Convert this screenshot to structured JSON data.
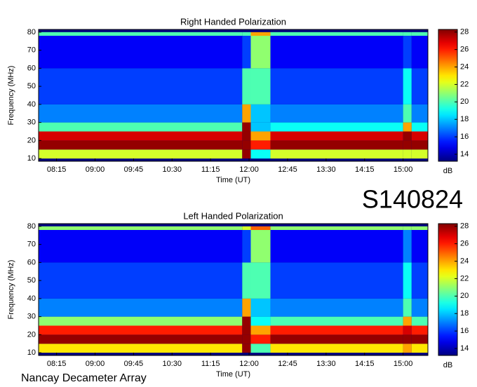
{
  "page": {
    "id": "S140824",
    "footer": "Nancay Decameter Array"
  },
  "chart_data": [
    {
      "type": "heatmap",
      "title": "Right Handed Polarization",
      "xlabel": "Time (UT)",
      "ylabel": "Frequency (MHz)",
      "colorbar_label": "dB",
      "colormap": "jet",
      "xlim": [
        474,
        929
      ],
      "xticks": [
        {
          "value": 495,
          "label": "08:15"
        },
        {
          "value": 540,
          "label": "09:00"
        },
        {
          "value": 585,
          "label": "09:45"
        },
        {
          "value": 630,
          "label": "10:30"
        },
        {
          "value": 675,
          "label": "11:15"
        },
        {
          "value": 720,
          "label": "12:00"
        },
        {
          "value": 765,
          "label": "12:45"
        },
        {
          "value": 810,
          "label": "13:30"
        },
        {
          "value": 855,
          "label": "14:15"
        },
        {
          "value": 900,
          "label": "15:00"
        }
      ],
      "ylim": [
        8.5,
        81.5
      ],
      "yticks": [
        10,
        20,
        30,
        40,
        50,
        60,
        70,
        80
      ],
      "clim": [
        13.2,
        28.3
      ],
      "cticks": [
        14,
        16,
        18,
        20,
        22,
        24,
        26,
        28
      ],
      "x_bins": [
        474,
        712,
        722,
        745,
        900,
        910,
        929
      ],
      "y_bins": [
        10,
        15,
        20,
        25,
        30,
        40,
        60,
        78,
        80
      ],
      "values": [
        [
          22,
          28,
          19,
          22,
          22,
          22
        ],
        [
          28,
          28,
          26,
          28,
          28,
          28
        ],
        [
          27,
          28,
          24,
          27,
          28,
          27
        ],
        [
          20,
          28,
          18,
          19,
          24,
          19
        ],
        [
          17,
          24,
          18,
          17,
          20,
          17
        ],
        [
          16,
          20,
          20,
          16,
          19,
          16
        ],
        [
          15,
          16,
          21,
          15,
          16,
          15
        ],
        [
          20,
          20,
          24,
          20,
          20,
          20
        ]
      ]
    },
    {
      "type": "heatmap",
      "title": "Left Handed Polarization",
      "xlabel": "Time (UT)",
      "ylabel": "Frequency (MHz)",
      "colorbar_label": "dB",
      "colormap": "jet",
      "xlim": [
        474,
        929
      ],
      "xticks": [
        {
          "value": 495,
          "label": "08:15"
        },
        {
          "value": 540,
          "label": "09:00"
        },
        {
          "value": 585,
          "label": "09:45"
        },
        {
          "value": 630,
          "label": "10:30"
        },
        {
          "value": 675,
          "label": "11:15"
        },
        {
          "value": 720,
          "label": "12:00"
        },
        {
          "value": 765,
          "label": "12:45"
        },
        {
          "value": 810,
          "label": "13:30"
        },
        {
          "value": 855,
          "label": "14:15"
        },
        {
          "value": 900,
          "label": "15:00"
        }
      ],
      "ylim": [
        8.5,
        81.5
      ],
      "yticks": [
        10,
        20,
        30,
        40,
        50,
        60,
        70,
        80
      ],
      "clim": [
        13.2,
        28.3
      ],
      "cticks": [
        14,
        16,
        18,
        20,
        22,
        24,
        26,
        28
      ],
      "x_bins": [
        474,
        712,
        722,
        745,
        900,
        910,
        929
      ],
      "y_bins": [
        10,
        15,
        20,
        25,
        30,
        40,
        60,
        78,
        80
      ],
      "values": [
        [
          23,
          28,
          20,
          23,
          24,
          23
        ],
        [
          28,
          28,
          26,
          28,
          28,
          28
        ],
        [
          26,
          28,
          24,
          26,
          27,
          26
        ],
        [
          21,
          28,
          19,
          20,
          24,
          20
        ],
        [
          17,
          24,
          18,
          17,
          20,
          17
        ],
        [
          16,
          20,
          20,
          16,
          19,
          16
        ],
        [
          15,
          16,
          21,
          15,
          17,
          15
        ],
        [
          21,
          22,
          25,
          21,
          21,
          21
        ]
      ]
    }
  ]
}
